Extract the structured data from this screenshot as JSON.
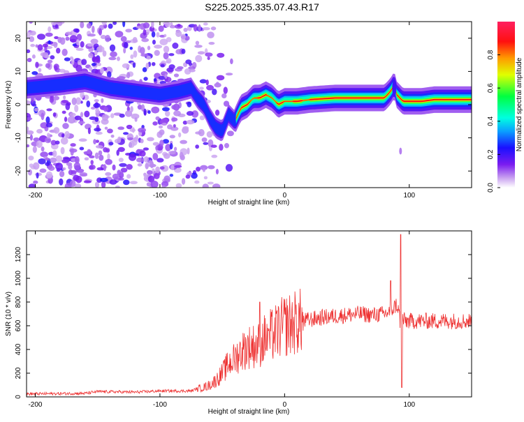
{
  "title": "S225.2025.335.07.43.R17",
  "chart_data": [
    {
      "type": "heatmap",
      "name": "spectrogram",
      "xlabel": "Height of straight line (km)",
      "ylabel": "Frequency (Hz)",
      "xlim": [
        -207,
        150
      ],
      "ylim": [
        -25,
        25
      ],
      "xticks": [
        -200,
        -100,
        0,
        100
      ],
      "yticks": [
        -20,
        -10,
        0,
        10,
        20
      ],
      "colorbar": {
        "label": "Normalized spectral amplitude",
        "range": [
          0,
          1
        ],
        "ticks": [
          0.0,
          0.2,
          0.4,
          0.6,
          0.8
        ]
      },
      "ridge": {
        "x": [
          -207,
          -180,
          -160,
          -140,
          -120,
          -100,
          -85,
          -75,
          -70,
          -65,
          -60,
          -55,
          -50,
          -45,
          -40,
          -35,
          -30,
          -25,
          -20,
          -15,
          -10,
          -5,
          0,
          10,
          20,
          40,
          60,
          80,
          85,
          88,
          90,
          95,
          100,
          110,
          120,
          130,
          150
        ],
        "freq": [
          5,
          6,
          7,
          5,
          4,
          3,
          4,
          5,
          2,
          0,
          -4,
          -7,
          -8,
          -3,
          -5,
          -1,
          0,
          2,
          2,
          3,
          2,
          0,
          1,
          1,
          1.5,
          2,
          2,
          2,
          4,
          6,
          3,
          1,
          1,
          1,
          1.5,
          1.5,
          1.5
        ]
      }
    },
    {
      "type": "line",
      "name": "snr",
      "xlabel": "Height of straight line (km)",
      "ylabel": "SNR (10 * v/v)",
      "xlim": [
        -207,
        150
      ],
      "ylim": [
        0,
        1400
      ],
      "xticks": [
        -200,
        -100,
        0,
        100
      ],
      "yticks": [
        0,
        200,
        400,
        600,
        800,
        1000,
        1200
      ],
      "color": "#ee3333",
      "envelope": {
        "x": [
          -207,
          -160,
          -150,
          -120,
          -100,
          -75,
          -70,
          -65,
          -60,
          -55,
          -50,
          -45,
          -40,
          -35,
          -30,
          -25,
          -20,
          -15,
          -10,
          -5,
          0,
          10,
          20,
          30,
          40,
          50,
          60,
          70,
          80,
          85,
          88,
          90,
          92,
          93,
          94,
          95,
          97,
          100,
          110,
          120,
          130,
          140,
          150
        ],
        "y": [
          25,
          30,
          45,
          40,
          50,
          50,
          70,
          80,
          100,
          140,
          200,
          280,
          320,
          380,
          420,
          430,
          440,
          500,
          520,
          560,
          600,
          630,
          650,
          670,
          680,
          690,
          700,
          690,
          700,
          720,
          760,
          780,
          700,
          600,
          700,
          650,
          640,
          640,
          640,
          640,
          640,
          640,
          640
        ]
      },
      "peaks": [
        {
          "x": -20,
          "y": 800
        },
        {
          "x": -13,
          "y": 560
        },
        {
          "x": 85,
          "y": 980
        },
        {
          "x": 93,
          "y": 1370
        },
        {
          "x": 94,
          "y": 80
        }
      ]
    }
  ]
}
